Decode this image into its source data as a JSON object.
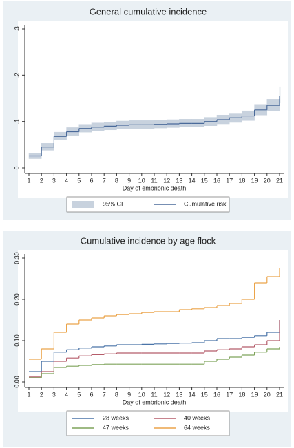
{
  "chart_data": [
    {
      "type": "line",
      "step": true,
      "title": "General cumulative incidence",
      "x_label": "Day of embrionic death",
      "x": [
        1,
        2,
        3,
        4,
        5,
        6,
        7,
        8,
        9,
        10,
        11,
        12,
        13,
        14,
        15,
        16,
        17,
        18,
        19,
        20,
        21
      ],
      "xlim": [
        1,
        21
      ],
      "xticks": [
        1,
        2,
        3,
        4,
        5,
        6,
        7,
        8,
        9,
        10,
        11,
        12,
        13,
        14,
        15,
        16,
        17,
        18,
        19,
        20,
        21
      ],
      "ylim": [
        0,
        0.3
      ],
      "yticks": [
        0,
        {
          "value": 0.1,
          "label": ".1"
        },
        {
          "value": 0.2,
          "label": ".2"
        },
        {
          "value": 0.3,
          "label": ".3"
        }
      ],
      "grid": false,
      "ci": {
        "name": "95% CI",
        "color": "#c8d2de",
        "lower": [
          0.02,
          0.038,
          0.06,
          0.07,
          0.077,
          0.08,
          0.082,
          0.084,
          0.085,
          0.085,
          0.086,
          0.087,
          0.088,
          0.088,
          0.091,
          0.095,
          0.098,
          0.102,
          0.114,
          0.123,
          0.14
        ],
        "upper": [
          0.032,
          0.053,
          0.077,
          0.087,
          0.094,
          0.097,
          0.099,
          0.101,
          0.102,
          0.102,
          0.103,
          0.104,
          0.105,
          0.105,
          0.109,
          0.114,
          0.118,
          0.123,
          0.137,
          0.148,
          0.175
        ]
      },
      "series": [
        {
          "name": "Cumulative risk",
          "color": "#4a6a9a",
          "values": [
            0.026,
            0.045,
            0.068,
            0.078,
            0.085,
            0.088,
            0.09,
            0.092,
            0.093,
            0.093,
            0.094,
            0.095,
            0.096,
            0.096,
            0.1,
            0.104,
            0.108,
            0.112,
            0.125,
            0.135,
            0.155
          ]
        }
      ]
    },
    {
      "type": "line",
      "step": true,
      "title": "Cumulative incidence by age flock",
      "x_label": "Day of embrionic death",
      "x": [
        1,
        2,
        3,
        4,
        5,
        6,
        7,
        8,
        9,
        10,
        11,
        12,
        13,
        14,
        15,
        16,
        17,
        18,
        19,
        20,
        21
      ],
      "xlim": [
        1,
        21
      ],
      "xticks": [
        1,
        2,
        3,
        4,
        5,
        6,
        7,
        8,
        9,
        10,
        11,
        12,
        13,
        14,
        15,
        16,
        17,
        18,
        19,
        20,
        21
      ],
      "ylim": [
        0,
        0.3
      ],
      "yticks": [
        {
          "value": 0,
          "label": "0.00"
        },
        {
          "value": 0.1,
          "label": "0.10"
        },
        {
          "value": 0.2,
          "label": "0.20"
        },
        {
          "value": 0.3,
          "label": "0.30"
        }
      ],
      "grid": false,
      "series": [
        {
          "name": "28 weeks",
          "color": "#4a74a8",
          "values": [
            0.025,
            0.05,
            0.072,
            0.078,
            0.082,
            0.085,
            0.087,
            0.09,
            0.09,
            0.091,
            0.092,
            0.093,
            0.094,
            0.095,
            0.1,
            0.105,
            0.105,
            0.108,
            0.112,
            0.12,
            0.15
          ]
        },
        {
          "name": "40 weeks",
          "color": "#b55c6a",
          "values": [
            0.012,
            0.025,
            0.05,
            0.058,
            0.063,
            0.066,
            0.068,
            0.07,
            0.07,
            0.07,
            0.07,
            0.07,
            0.07,
            0.07,
            0.075,
            0.078,
            0.08,
            0.085,
            0.09,
            0.1,
            0.15
          ]
        },
        {
          "name": "47 weeks",
          "color": "#7ea35a",
          "values": [
            0.01,
            0.02,
            0.035,
            0.038,
            0.04,
            0.042,
            0.043,
            0.043,
            0.043,
            0.043,
            0.043,
            0.043,
            0.043,
            0.043,
            0.05,
            0.055,
            0.06,
            0.065,
            0.072,
            0.08,
            0.085
          ]
        },
        {
          "name": "64 weeks",
          "color": "#eba44a",
          "values": [
            0.055,
            0.08,
            0.12,
            0.14,
            0.15,
            0.155,
            0.16,
            0.163,
            0.165,
            0.168,
            0.17,
            0.17,
            0.175,
            0.177,
            0.18,
            0.185,
            0.19,
            0.2,
            0.24,
            0.255,
            0.275
          ]
        }
      ]
    }
  ]
}
